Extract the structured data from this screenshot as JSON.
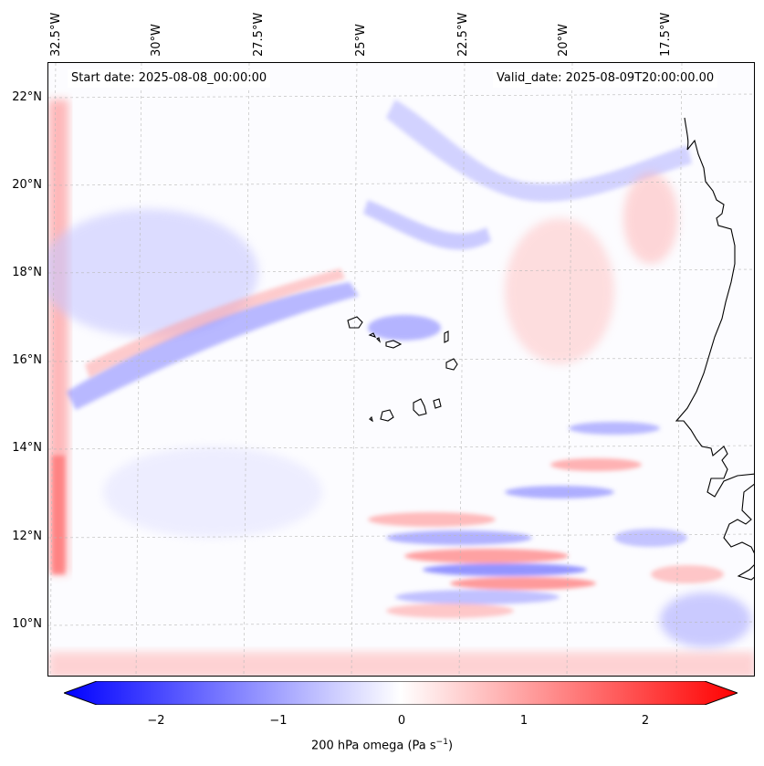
{
  "start_date": "Start date: 2025-08-08_00:00:00",
  "valid_date": "Valid_date: 2025-08-09T20:00:00.00",
  "longitude_labels": [
    "32.5°W",
    "30°W",
    "27.5°W",
    "25°W",
    "22.5°W",
    "20°W",
    "17.5°W"
  ],
  "latitude_labels": [
    "22°N",
    "20°N",
    "18°N",
    "16°N",
    "14°N",
    "12°N",
    "10°N"
  ],
  "colorbar": {
    "ticks": [
      "−2",
      "−1",
      "0",
      "1",
      "2"
    ],
    "label": "200 hPa omega (Pa s",
    "label_sup": "−1",
    "label_end": ")",
    "min": -2.5,
    "max": 2.5,
    "colors": {
      "negative": "#0000ff",
      "zero": "#ffffff",
      "positive": "#ff0000"
    }
  },
  "colors": {
    "coastline": "#000000",
    "gridline": "#b8b8b8"
  }
}
